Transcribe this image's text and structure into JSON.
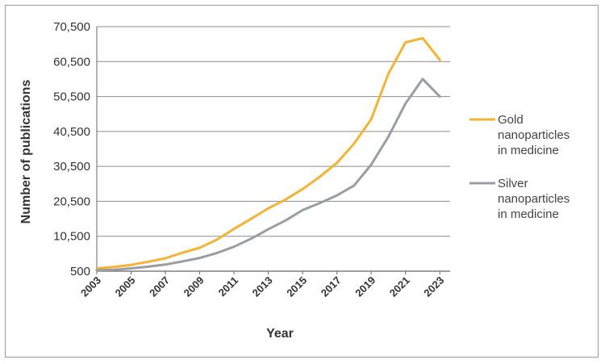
{
  "chart_data": {
    "type": "line",
    "title": "",
    "xlabel": "Year",
    "ylabel": "Number of publications",
    "x": [
      2003,
      2004,
      2005,
      2006,
      2007,
      2008,
      2009,
      2010,
      2011,
      2012,
      2013,
      2014,
      2015,
      2016,
      2017,
      2018,
      2019,
      2020,
      2021,
      2022,
      2023
    ],
    "x_tick_labels": [
      "2003",
      "2005",
      "2007",
      "2009",
      "2011",
      "2013",
      "2015",
      "2017",
      "2019",
      "2021",
      "2023"
    ],
    "y_tick_labels": [
      "500",
      "10,500",
      "20,500",
      "30,500",
      "40,500",
      "50,500",
      "60,500",
      "70,500"
    ],
    "ylim": [
      500,
      70500
    ],
    "grid": "horizontal",
    "legend_position": "right",
    "series": [
      {
        "name": "Gold nanoparticles in medicine",
        "legend_lines": [
          "Gold",
          "nanoparticles",
          "in medicine"
        ],
        "color": "#f5b335",
        "values": [
          1300,
          1700,
          2300,
          3200,
          4200,
          5800,
          7200,
          9500,
          12600,
          15500,
          18500,
          21000,
          24000,
          27500,
          31500,
          37000,
          44000,
          57000,
          66000,
          67200,
          61000
        ]
      },
      {
        "name": "Silver nanoparticles in medicine",
        "legend_lines": [
          "Silver",
          "nanoparticles",
          "in medicine"
        ],
        "color": "#9a9ea3",
        "values": [
          800,
          900,
          1300,
          1800,
          2400,
          3300,
          4300,
          5700,
          7500,
          9800,
          12500,
          15000,
          18000,
          20000,
          22200,
          25000,
          31000,
          39000,
          48500,
          55500,
          50500
        ]
      }
    ]
  }
}
